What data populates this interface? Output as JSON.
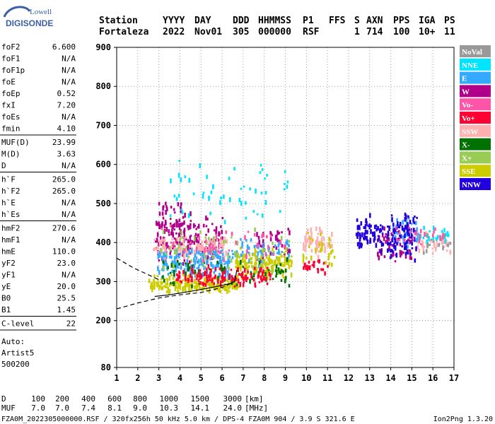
{
  "logo": {
    "line1": "Lowell",
    "line2": "DIGISONDE"
  },
  "header": {
    "row1": [
      "Station",
      "YYYY",
      "DAY",
      "DDD",
      "HHMMSS",
      "P1",
      "FFS",
      "S",
      "AXN",
      "PPS",
      "IGA",
      "PS"
    ],
    "row2": [
      "Fortaleza",
      "2022",
      "Nov01",
      "305",
      "000000",
      "RSF",
      "",
      "1",
      "714",
      "100",
      "10+",
      "11"
    ]
  },
  "params_block1": [
    {
      "label": "foF2",
      "value": "6.600"
    },
    {
      "label": "foF1",
      "value": "N/A"
    },
    {
      "label": "foF1p",
      "value": "N/A"
    },
    {
      "label": "foE",
      "value": "N/A"
    },
    {
      "label": "foEp",
      "value": "0.52"
    },
    {
      "label": "fxI",
      "value": "7.20"
    },
    {
      "label": "foEs",
      "value": "N/A"
    },
    {
      "label": "fmin",
      "value": "4.10"
    }
  ],
  "params_block2": [
    {
      "label": "MUF(D)",
      "value": "23.99"
    },
    {
      "label": "M(D)",
      "value": "3.63"
    },
    {
      "label": "D",
      "value": "N/A"
    }
  ],
  "params_block3": [
    {
      "label": "h`F",
      "value": "265.0"
    },
    {
      "label": "h`F2",
      "value": "265.0"
    },
    {
      "label": "h`E",
      "value": "N/A"
    },
    {
      "label": "h`Es",
      "value": "N/A"
    }
  ],
  "params_block4": [
    {
      "label": "hmF2",
      "value": "270.6"
    },
    {
      "label": "hmF1",
      "value": "N/A"
    },
    {
      "label": "hmE",
      "value": "110.0"
    },
    {
      "label": "yF2",
      "value": "23.0"
    },
    {
      "label": "yF1",
      "value": "N/A"
    },
    {
      "label": "yE",
      "value": "20.0"
    },
    {
      "label": "B0",
      "value": "25.5"
    },
    {
      "label": "B1",
      "value": "1.45"
    }
  ],
  "params_block5": [
    {
      "label": "C-level",
      "value": "22"
    }
  ],
  "auto_block": [
    "Auto:",
    "Artist5",
    "500200"
  ],
  "legend": [
    {
      "label": "NoVal",
      "bg": "#999999",
      "fg": "#ffffff"
    },
    {
      "label": "NNE",
      "bg": "#00e5ff",
      "fg": "#ffffff"
    },
    {
      "label": "E",
      "bg": "#33aaff",
      "fg": "#ffffff"
    },
    {
      "label": "W",
      "bg": "#b0008a",
      "fg": "#ffffff"
    },
    {
      "label": "Vo-",
      "bg": "#ff55a8",
      "fg": "#ffffff"
    },
    {
      "label": "Vo+",
      "bg": "#ff0033",
      "fg": "#ffffff"
    },
    {
      "label": "SSW",
      "bg": "#ffb0b0",
      "fg": "#ffffff"
    },
    {
      "label": "X-",
      "bg": "#007000",
      "fg": "#ffffff"
    },
    {
      "label": "X+",
      "bg": "#99cc55",
      "fg": "#ffffff"
    },
    {
      "label": "SSE",
      "bg": "#cccc00",
      "fg": "#ffffff"
    },
    {
      "label": "NNW",
      "bg": "#2200dd",
      "fg": "#ffffff"
    }
  ],
  "footer": {
    "d_label": "D",
    "d_values": [
      "100",
      "200",
      "400",
      "600",
      "800",
      "1000",
      "1500",
      "3000",
      "[km]"
    ],
    "muf_label": "MUF",
    "muf_values": [
      "7.0",
      "7.0",
      "7.4",
      "8.1",
      "9.0",
      "10.3",
      "14.1",
      "24.0",
      "[MHz]"
    ],
    "fileline": "FZA0M_2022305000000.RSF / 320fx256h 50 kHz 5.0 km / DPS-4 FZA0M 904 / 3.9 S 321.6 E",
    "version": "Ion2Png 1.3.20"
  },
  "chart_data": {
    "type": "scatter",
    "xlim": [
      1,
      17
    ],
    "ylim": [
      80,
      900
    ],
    "xticks": [
      "1",
      "2",
      "3",
      "4",
      "5",
      "6",
      "7",
      "8",
      "9",
      "10",
      "11",
      "12",
      "13",
      "14",
      "15",
      "16",
      "17"
    ],
    "yticks": [
      "80",
      "200",
      "300",
      "400",
      "500",
      "600",
      "700",
      "800",
      "900"
    ],
    "grid": true,
    "legend_position": "right",
    "echo_clusters": [
      {
        "name": "W",
        "color": "#b0008a",
        "xmin": 2.8,
        "xmax": 4.5,
        "ymin": 330,
        "ymax": 520,
        "n": 130
      },
      {
        "name": "W",
        "color": "#b0008a",
        "xmin": 4.4,
        "xmax": 6.0,
        "ymin": 340,
        "ymax": 470,
        "n": 70
      },
      {
        "name": "W",
        "color": "#b0008a",
        "xmin": 7.6,
        "xmax": 9.2,
        "ymin": 340,
        "ymax": 450,
        "n": 45
      },
      {
        "name": "W",
        "color": "#b0008a",
        "xmin": 13.2,
        "xmax": 15.0,
        "ymin": 345,
        "ymax": 440,
        "n": 50
      },
      {
        "name": "SSW",
        "color": "#ffb0b0",
        "xmin": 2.6,
        "xmax": 6.2,
        "ymin": 350,
        "ymax": 420,
        "n": 130
      },
      {
        "name": "SSW",
        "color": "#ffb0b0",
        "xmin": 9.8,
        "xmax": 11.2,
        "ymin": 360,
        "ymax": 440,
        "n": 60
      },
      {
        "name": "SSW",
        "color": "#ffb0b0",
        "xmin": 15.0,
        "xmax": 16.8,
        "ymin": 370,
        "ymax": 430,
        "n": 40
      },
      {
        "name": "E",
        "color": "#33aaff",
        "xmin": 2.9,
        "xmax": 6.4,
        "ymin": 300,
        "ymax": 385,
        "n": 180
      },
      {
        "name": "E",
        "color": "#33aaff",
        "xmin": 6.4,
        "xmax": 9.2,
        "ymin": 330,
        "ymax": 420,
        "n": 60
      },
      {
        "name": "E",
        "color": "#33aaff",
        "xmin": 14.0,
        "xmax": 15.4,
        "ymin": 380,
        "ymax": 470,
        "n": 40
      },
      {
        "name": "NNE",
        "color": "#00e5ff",
        "xmin": 3.5,
        "xmax": 9.3,
        "ymin": 430,
        "ymax": 620,
        "n": 55
      },
      {
        "name": "NNE",
        "color": "#00e5ff",
        "xmin": 15.2,
        "xmax": 16.7,
        "ymin": 395,
        "ymax": 440,
        "n": 30
      },
      {
        "name": "NNW",
        "color": "#2200dd",
        "xmin": 12.3,
        "xmax": 13.6,
        "ymin": 370,
        "ymax": 480,
        "n": 70
      },
      {
        "name": "NNW",
        "color": "#2200dd",
        "xmin": 13.8,
        "xmax": 15.2,
        "ymin": 350,
        "ymax": 480,
        "n": 90
      },
      {
        "name": "SSE",
        "color": "#cccc00",
        "xmin": 2.5,
        "xmax": 6.8,
        "ymin": 265,
        "ymax": 320,
        "n": 200
      },
      {
        "name": "SSE",
        "color": "#cccc00",
        "xmin": 6.6,
        "xmax": 9.3,
        "ymin": 300,
        "ymax": 390,
        "n": 150
      },
      {
        "name": "SSE",
        "color": "#cccc00",
        "xmin": 9.8,
        "xmax": 11.3,
        "ymin": 330,
        "ymax": 430,
        "n": 30
      },
      {
        "name": "X-",
        "color": "#007000",
        "xmin": 3.0,
        "xmax": 9.2,
        "ymin": 285,
        "ymax": 360,
        "n": 70
      },
      {
        "name": "X+",
        "color": "#99cc55",
        "xmin": 3.0,
        "xmax": 9.2,
        "ymin": 300,
        "ymax": 440,
        "n": 60
      },
      {
        "name": "Vo+",
        "color": "#ff0033",
        "xmin": 3.8,
        "xmax": 8.3,
        "ymin": 285,
        "ymax": 340,
        "n": 130
      },
      {
        "name": "Vo+",
        "color": "#ff0033",
        "xmin": 9.8,
        "xmax": 11.0,
        "ymin": 320,
        "ymax": 360,
        "n": 25
      },
      {
        "name": "Vo-",
        "color": "#ff55a8",
        "xmin": 2.8,
        "xmax": 9.0,
        "ymin": 350,
        "ymax": 450,
        "n": 45
      },
      {
        "name": "Vo-",
        "color": "#ff55a8",
        "xmin": 14.0,
        "xmax": 16.5,
        "ymin": 390,
        "ymax": 440,
        "n": 25
      },
      {
        "name": "NoVal",
        "color": "#999999",
        "xmin": 15.5,
        "xmax": 16.8,
        "ymin": 370,
        "ymax": 430,
        "n": 15
      }
    ],
    "trace_o_solid": [
      [
        2.8,
        262
      ],
      [
        3.5,
        266
      ],
      [
        4.5,
        275
      ],
      [
        5.5,
        285
      ],
      [
        6.4,
        295
      ],
      [
        6.6,
        300
      ],
      [
        6.7,
        330
      ]
    ],
    "trace_profile_dashed": [
      [
        1.0,
        230
      ],
      [
        2.0,
        245
      ],
      [
        3.0,
        258
      ],
      [
        4.0,
        266
      ],
      [
        5.0,
        272
      ],
      [
        6.0,
        285
      ],
      [
        6.6,
        300
      ]
    ],
    "trace_x_dashed": [
      [
        1.0,
        360
      ],
      [
        1.8,
        335
      ],
      [
        2.6,
        315
      ],
      [
        3.0,
        305
      ]
    ]
  }
}
